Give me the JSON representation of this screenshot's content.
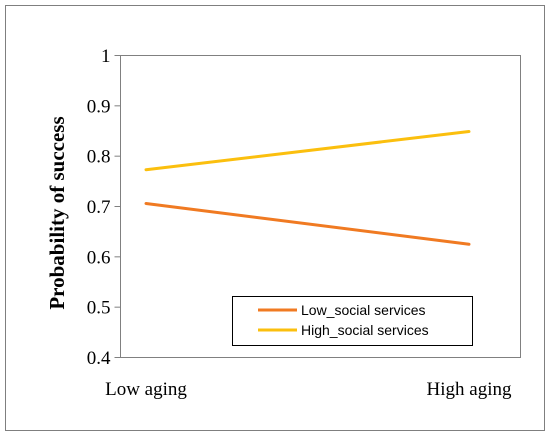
{
  "chart_data": {
    "type": "line",
    "title": "",
    "xlabel": "",
    "ylabel": "Probability of success",
    "categories": [
      "Low aging",
      "High aging"
    ],
    "ylim": [
      0.4,
      1
    ],
    "yticks": [
      "0.4",
      "0.5",
      "0.6",
      "0.7",
      "0.8",
      "0.9",
      "1"
    ],
    "grid": false,
    "legend_position": "bottom-right",
    "series": [
      {
        "name": "Low_social services",
        "values": [
          0.706,
          0.625
        ],
        "color": "#f07a22"
      },
      {
        "name": "High_social services",
        "values": [
          0.773,
          0.849
        ],
        "color": "#fbbf0e"
      }
    ]
  }
}
